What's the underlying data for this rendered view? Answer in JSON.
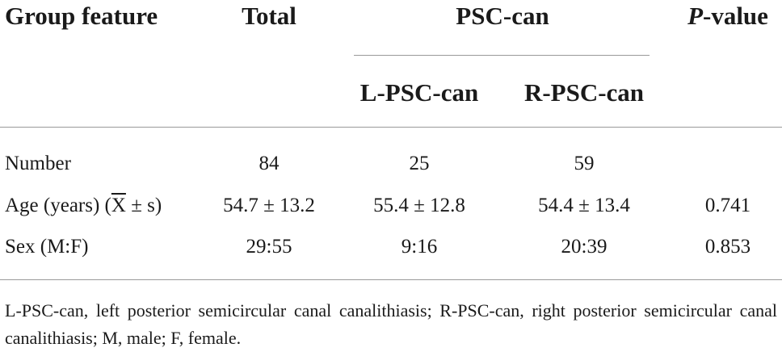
{
  "headers": {
    "group_feature": "Group feature",
    "total": "Total",
    "psc_can": "PSC-can",
    "p_value_italic": "P",
    "p_value_rest": "-value",
    "l_psc_can": "L-PSC-can",
    "r_psc_can": "R-PSC-can"
  },
  "rows": [
    {
      "label": "Number",
      "total": "84",
      "l": "25",
      "r": "59",
      "p": ""
    },
    {
      "label_pre": "Age (years) (",
      "label_xbar": "X",
      "label_post": " ± s)",
      "total": "54.7 ± 13.2",
      "l": "55.4 ± 12.8",
      "r": "54.4 ± 13.4",
      "p": "0.741"
    },
    {
      "label": "Sex (M:F)",
      "total": "29:55",
      "l": "9:16",
      "r": "20:39",
      "p": "0.853"
    }
  ],
  "footnote": "L-PSC-can, left posterior semicircular canal canalithiasis; R-PSC-can, right posterior semicircular canal canalithiasis; M, male; F, female."
}
